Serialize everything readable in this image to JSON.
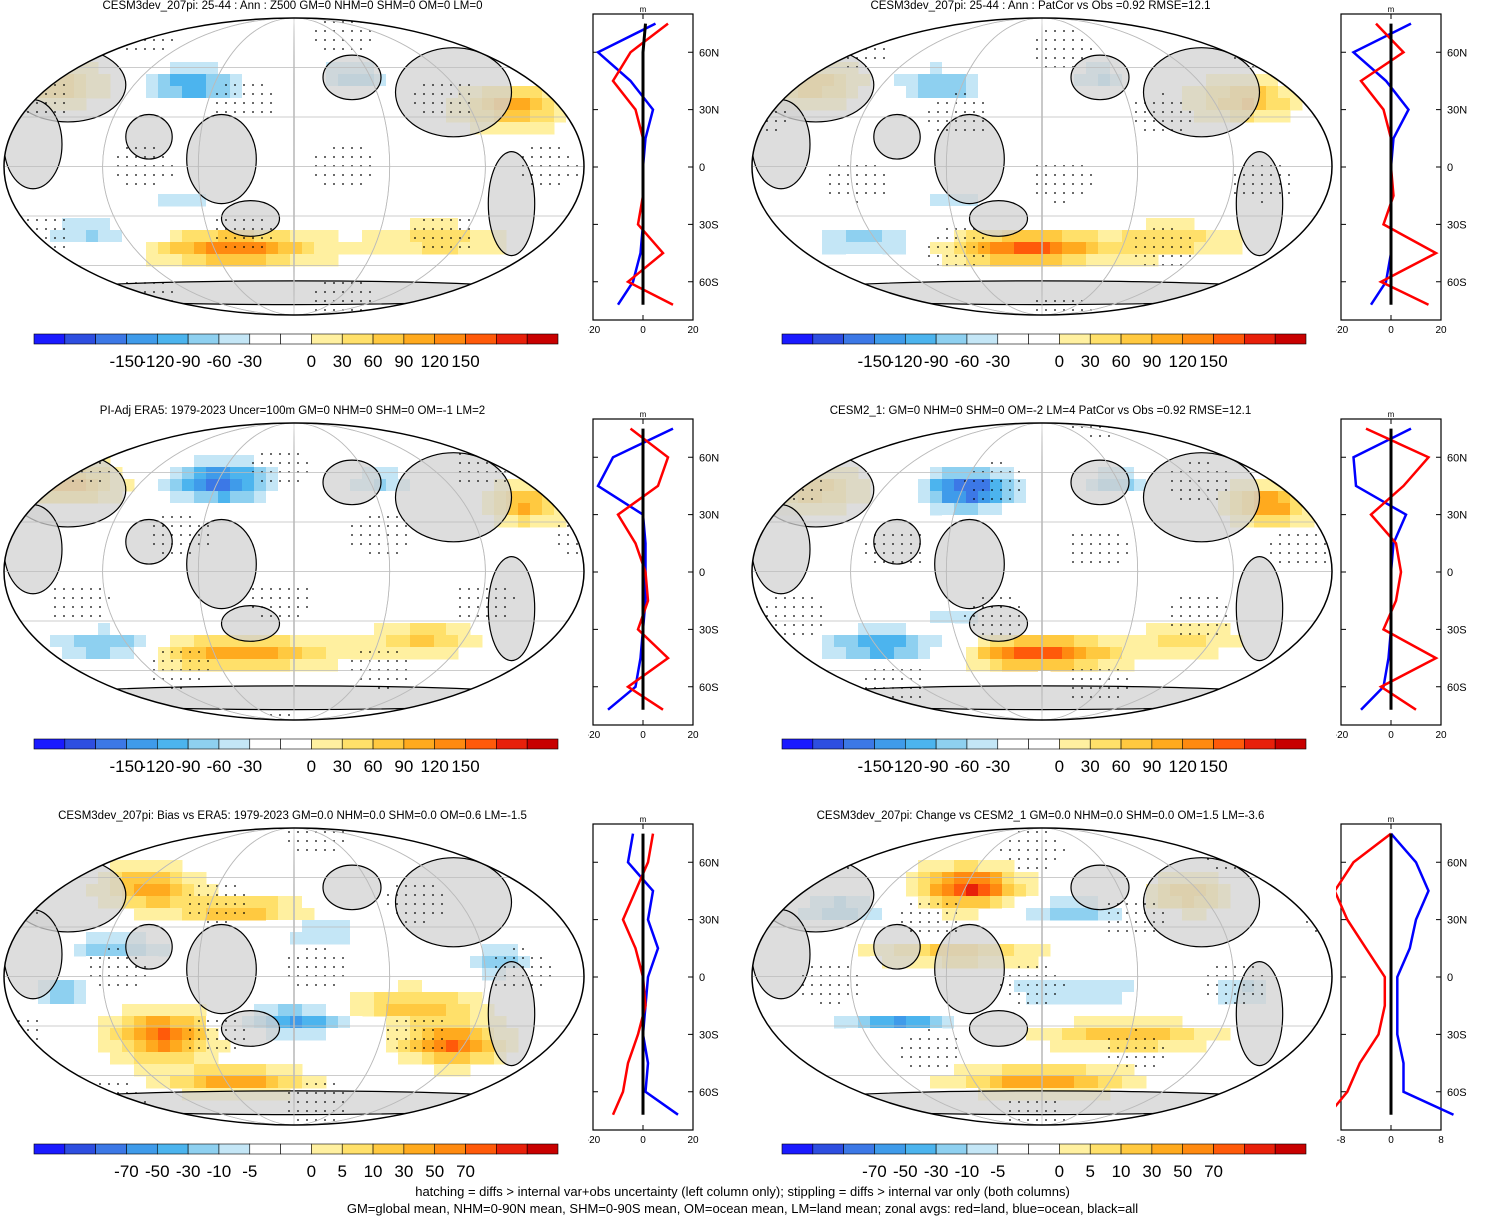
{
  "panels": [
    {
      "id": "p1",
      "title": "CESM3dev_207pi: 25-44 : Ann : Z500 GM=0 NHM=0 SHM=0 OM=0 LM=0",
      "colorbar": [
        "-150",
        "-120",
        "-90",
        "-60",
        "-30",
        "0",
        "30",
        "60",
        "90",
        "120",
        "150"
      ],
      "zonal_x_ticks": [
        "-20",
        "0",
        "20"
      ],
      "zonal_y_ticks": [
        "60N",
        "30N",
        "0",
        "30S",
        "60S"
      ],
      "zonal_unit": "m"
    },
    {
      "id": "p2",
      "title": "CESM3dev_207pi: 25-44 : Ann : PatCor vs Obs =0.92 RMSE=12.1",
      "colorbar": [
        "-150",
        "-120",
        "-90",
        "-60",
        "-30",
        "0",
        "30",
        "60",
        "90",
        "120",
        "150"
      ],
      "zonal_x_ticks": [
        "-20",
        "0",
        "20"
      ],
      "zonal_y_ticks": [
        "60N",
        "30N",
        "0",
        "30S",
        "60S"
      ],
      "zonal_unit": "m"
    },
    {
      "id": "p3",
      "title": "PI-Adj ERA5: 1979-2023 Uncer=100m GM=0 NHM=0 SHM=0 OM=-1 LM=2",
      "colorbar": [
        "-150",
        "-120",
        "-90",
        "-60",
        "-30",
        "0",
        "30",
        "60",
        "90",
        "120",
        "150"
      ],
      "zonal_x_ticks": [
        "-20",
        "0",
        "20"
      ],
      "zonal_y_ticks": [
        "60N",
        "30N",
        "0",
        "30S",
        "60S"
      ],
      "zonal_unit": "m"
    },
    {
      "id": "p4",
      "title": "CESM2_1: GM=0 NHM=0 SHM=0 OM=-2 LM=4 PatCor vs Obs =0.92 RMSE=12.1",
      "colorbar": [
        "-150",
        "-120",
        "-90",
        "-60",
        "-30",
        "0",
        "30",
        "60",
        "90",
        "120",
        "150"
      ],
      "zonal_x_ticks": [
        "-20",
        "0",
        "20"
      ],
      "zonal_y_ticks": [
        "60N",
        "30N",
        "0",
        "30S",
        "60S"
      ],
      "zonal_unit": "m"
    },
    {
      "id": "p5",
      "title": "CESM3dev_207pi: Bias vs ERA5: 1979-2023 GM=0.0 NHM=0.0 SHM=0.0 OM=0.6 LM=-1.5",
      "colorbar": [
        "-70",
        "-50",
        "-30",
        "-10",
        "-5",
        "0",
        "5",
        "10",
        "30",
        "50",
        "70"
      ],
      "zonal_x_ticks": [
        "-20",
        "0",
        "20"
      ],
      "zonal_y_ticks": [
        "60N",
        "30N",
        "0",
        "30S",
        "60S"
      ],
      "zonal_unit": "m"
    },
    {
      "id": "p6",
      "title": "CESM3dev_207pi: Change vs CESM2_1 GM=0.0 NHM=0.0 SHM=0.0 OM=1.5 LM=-3.6",
      "colorbar": [
        "-70",
        "-50",
        "-30",
        "-10",
        "-5",
        "0",
        "5",
        "10",
        "30",
        "50",
        "70"
      ],
      "zonal_x_ticks": [
        "-8",
        "0",
        "8"
      ],
      "zonal_y_ticks": [
        "60N",
        "30N",
        "0",
        "30S",
        "60S"
      ],
      "zonal_unit": "m"
    }
  ],
  "footer": {
    "line1": "hatching = diffs > internal var+obs uncertainty (left column only); stippling = diffs > internal var only (both columns)",
    "line2": "GM=global mean, NHM=0-90N mean, SHM=0-90S mean, OM=ocean mean, LM=land mean; zonal avgs: red=land, blue=ocean, black=all"
  },
  "colors": {
    "palette": [
      "#1a1aff",
      "#2e4ee0",
      "#3c78e6",
      "#3f9bea",
      "#4cb4ee",
      "#8ed0f0",
      "#c4e6f6",
      "#ffffff",
      "#ffffff",
      "#fff0a0",
      "#ffe06a",
      "#ffc940",
      "#ffaa1e",
      "#ff8a10",
      "#ff5a0a",
      "#e8200a",
      "#c80000"
    ],
    "land": "#d2d2d2",
    "land_series": "#ff0000",
    "ocean_series": "#0000ff",
    "all_series": "#000000"
  },
  "chart_data": [
    {
      "type": "heatmap",
      "title": "CESM3dev_207pi: 25-44 : Ann : Z500 GM=0 NHM=0 SHM=0 OM=0 LM=0",
      "colorbar_range": [
        -150,
        150
      ],
      "zonal": {
        "lat": [
          75,
          60,
          45,
          30,
          15,
          0,
          -15,
          -30,
          -45,
          -60,
          -72
        ],
        "land": [
          10,
          -5,
          -12,
          -3,
          0,
          0,
          0,
          -2,
          8,
          -6,
          12
        ],
        "ocean": [
          5,
          -18,
          -5,
          4,
          1,
          0,
          0,
          0,
          -1,
          -4,
          -10
        ],
        "all": [
          1,
          0,
          0,
          0,
          0,
          0,
          0,
          0,
          0,
          0,
          0
        ]
      }
    },
    {
      "type": "heatmap",
      "title": "CESM3dev_207pi: 25-44 : Ann : PatCor vs Obs =0.92 RMSE=12.1",
      "colorbar_range": [
        -150,
        150
      ],
      "zonal": {
        "lat": [
          75,
          60,
          45,
          30,
          15,
          0,
          -15,
          -30,
          -45,
          -60,
          -72
        ],
        "land": [
          -6,
          5,
          -12,
          -3,
          0,
          0,
          1,
          -3,
          18,
          -4,
          15
        ],
        "ocean": [
          8,
          -15,
          -2,
          7,
          1,
          0,
          0,
          0,
          0,
          -2,
          -8
        ],
        "all": [
          0,
          0,
          0,
          0,
          0,
          0,
          0,
          0,
          0,
          0,
          0
        ]
      }
    },
    {
      "type": "heatmap",
      "title": "PI-Adj ERA5: 1979-2023 Uncer=100m GM=0 NHM=0 SHM=0 OM=-1 LM=2",
      "colorbar_range": [
        -150,
        150
      ],
      "zonal": {
        "lat": [
          75,
          60,
          45,
          30,
          15,
          0,
          -15,
          -30,
          -45,
          -60,
          -72
        ],
        "land": [
          -5,
          10,
          6,
          -10,
          -3,
          1,
          2,
          -2,
          10,
          -6,
          8
        ],
        "ocean": [
          12,
          -12,
          -18,
          0,
          1,
          1,
          1,
          0,
          -1,
          -3,
          -14
        ],
        "all": [
          0,
          0,
          0,
          0,
          0,
          0,
          0,
          0,
          0,
          0,
          0
        ]
      }
    },
    {
      "type": "heatmap",
      "title": "CESM2_1: GM=0 NHM=0 SHM=0 OM=-2 LM=4 PatCor vs Obs =0.92 RMSE=12.1",
      "colorbar_range": [
        -150,
        150
      ],
      "zonal": {
        "lat": [
          75,
          60,
          45,
          30,
          15,
          0,
          -15,
          -30,
          -45,
          -60,
          -72
        ],
        "land": [
          -10,
          15,
          5,
          -8,
          2,
          4,
          2,
          -3,
          18,
          -4,
          10
        ],
        "ocean": [
          8,
          -15,
          -14,
          6,
          1,
          0,
          0,
          0,
          -1,
          -3,
          -12
        ],
        "all": [
          0,
          0,
          0,
          0,
          0,
          0,
          0,
          0,
          0,
          0,
          0
        ]
      }
    },
    {
      "type": "heatmap",
      "title": "CESM3dev_207pi: Bias vs ERA5: 1979-2023 GM=0.0 NHM=0.0 SHM=0.0 OM=0.6 LM=-1.5",
      "colorbar_range": [
        -70,
        70
      ],
      "zonal": {
        "lat": [
          75,
          60,
          45,
          30,
          15,
          0,
          -15,
          -30,
          -45,
          -60,
          -72
        ],
        "land": [
          4,
          2,
          -3,
          -8,
          -3,
          0,
          1,
          -2,
          -6,
          -8,
          -12
        ],
        "ocean": [
          -4,
          -6,
          4,
          2,
          6,
          2,
          1,
          0,
          2,
          1,
          14
        ],
        "all": [
          0,
          0,
          0,
          0,
          0,
          0,
          0,
          0,
          0,
          0,
          0
        ]
      }
    },
    {
      "type": "heatmap",
      "title": "CESM3dev_207pi: Change vs CESM2_1 GM=0.0 NHM=0.0 SHM=0.0 OM=1.5 LM=-3.6",
      "colorbar_range": [
        -70,
        70
      ],
      "zonal": {
        "lat": [
          75,
          60,
          45,
          30,
          15,
          0,
          -15,
          -30,
          -45,
          -60,
          -72
        ],
        "land": [
          0,
          -6,
          -9,
          -7,
          -4,
          -1,
          -1,
          -2,
          -5,
          -7,
          -10
        ],
        "ocean": [
          0,
          4,
          6,
          4,
          3,
          1,
          1,
          1,
          2,
          2,
          10
        ],
        "all": [
          0,
          0,
          0,
          0,
          0,
          0,
          0,
          0,
          0,
          0,
          0
        ]
      }
    }
  ]
}
